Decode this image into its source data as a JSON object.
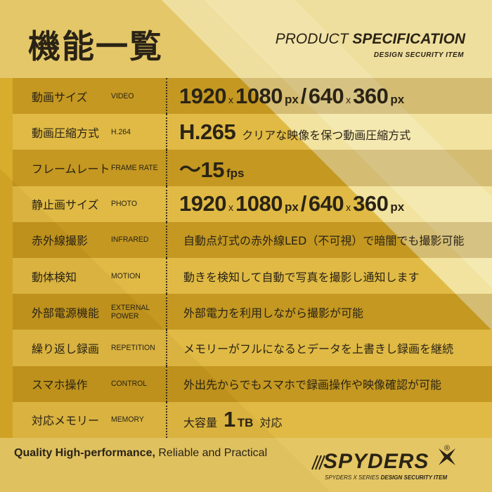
{
  "header": {
    "title": "機能一覧",
    "subtitle_light": "PRODUCT",
    "subtitle_bold": "SPECIFICATION",
    "tagline": "DESIGN SECURITY ITEM"
  },
  "table": {
    "rows": [
      {
        "jp": "動画サイズ",
        "en": "VIDEO",
        "value": [
          {
            "text": "1920",
            "size": "large"
          },
          {
            "text": "x",
            "size": "tiny"
          },
          {
            "text": "1080",
            "size": "large"
          },
          {
            "text": "px",
            "size": "small"
          },
          {
            "text": "/",
            "size": "large"
          },
          {
            "text": "640",
            "size": "large"
          },
          {
            "text": "x",
            "size": "tiny"
          },
          {
            "text": "360",
            "size": "large"
          },
          {
            "text": "px",
            "size": "small"
          }
        ]
      },
      {
        "jp": "動画圧縮方式",
        "en": "H.264",
        "value": [
          {
            "text": "H.265",
            "size": "large"
          },
          {
            "text": "クリアな映像を保つ動画圧縮方式",
            "size": "medium"
          }
        ]
      },
      {
        "jp": "フレームレート",
        "en": "FRAME RATE",
        "value": [
          {
            "text": "〜15",
            "size": "large"
          },
          {
            "text": "fps",
            "size": "small"
          }
        ]
      },
      {
        "jp": "静止画サイズ",
        "en": "PHOTO",
        "value": [
          {
            "text": "1920",
            "size": "large"
          },
          {
            "text": "x",
            "size": "tiny"
          },
          {
            "text": "1080",
            "size": "large"
          },
          {
            "text": "px",
            "size": "small"
          },
          {
            "text": "/",
            "size": "large"
          },
          {
            "text": "640",
            "size": "large"
          },
          {
            "text": "x",
            "size": "tiny"
          },
          {
            "text": "360",
            "size": "large"
          },
          {
            "text": "px",
            "size": "small"
          }
        ]
      },
      {
        "jp": "赤外線撮影",
        "en": "INFRARED",
        "value": [
          {
            "text": "自動点灯式の赤外線LED（不可視）で暗闇でも撮影可能",
            "size": "medium"
          }
        ]
      },
      {
        "jp": "動体検知",
        "en": "MOTION",
        "value": [
          {
            "text": "動きを検知して自動で写真を撮影し通知します",
            "size": "medium"
          }
        ]
      },
      {
        "jp": "外部電源機能",
        "en": "EXTERNAL POWER",
        "value": [
          {
            "text": "外部電力を利用しながら撮影が可能",
            "size": "medium"
          }
        ]
      },
      {
        "jp": "繰り返し録画",
        "en": "REPETITION",
        "value": [
          {
            "text": "メモリーがフルになるとデータを上書きし録画を継続",
            "size": "medium"
          }
        ]
      },
      {
        "jp": "スマホ操作",
        "en": "CONTROL",
        "value": [
          {
            "text": "外出先からでもスマホで録画操作や映像確認が可能",
            "size": "medium"
          }
        ]
      },
      {
        "jp": "対応メモリー",
        "en": "MEMORY",
        "value": [
          {
            "text": "大容量",
            "size": "medium"
          },
          {
            "text": "1",
            "size": "large"
          },
          {
            "text": "TB",
            "size": "small"
          },
          {
            "text": "対応",
            "size": "medium"
          }
        ]
      }
    ]
  },
  "footer": {
    "slogan_bold": "Quality High-performance,",
    "slogan_light": "Reliable and Practical",
    "logo": "SPYDERS",
    "registered": "®",
    "logo_series": "SPYDERS X SERIES",
    "logo_tagline": "DESIGN SECURITY ITEM"
  }
}
